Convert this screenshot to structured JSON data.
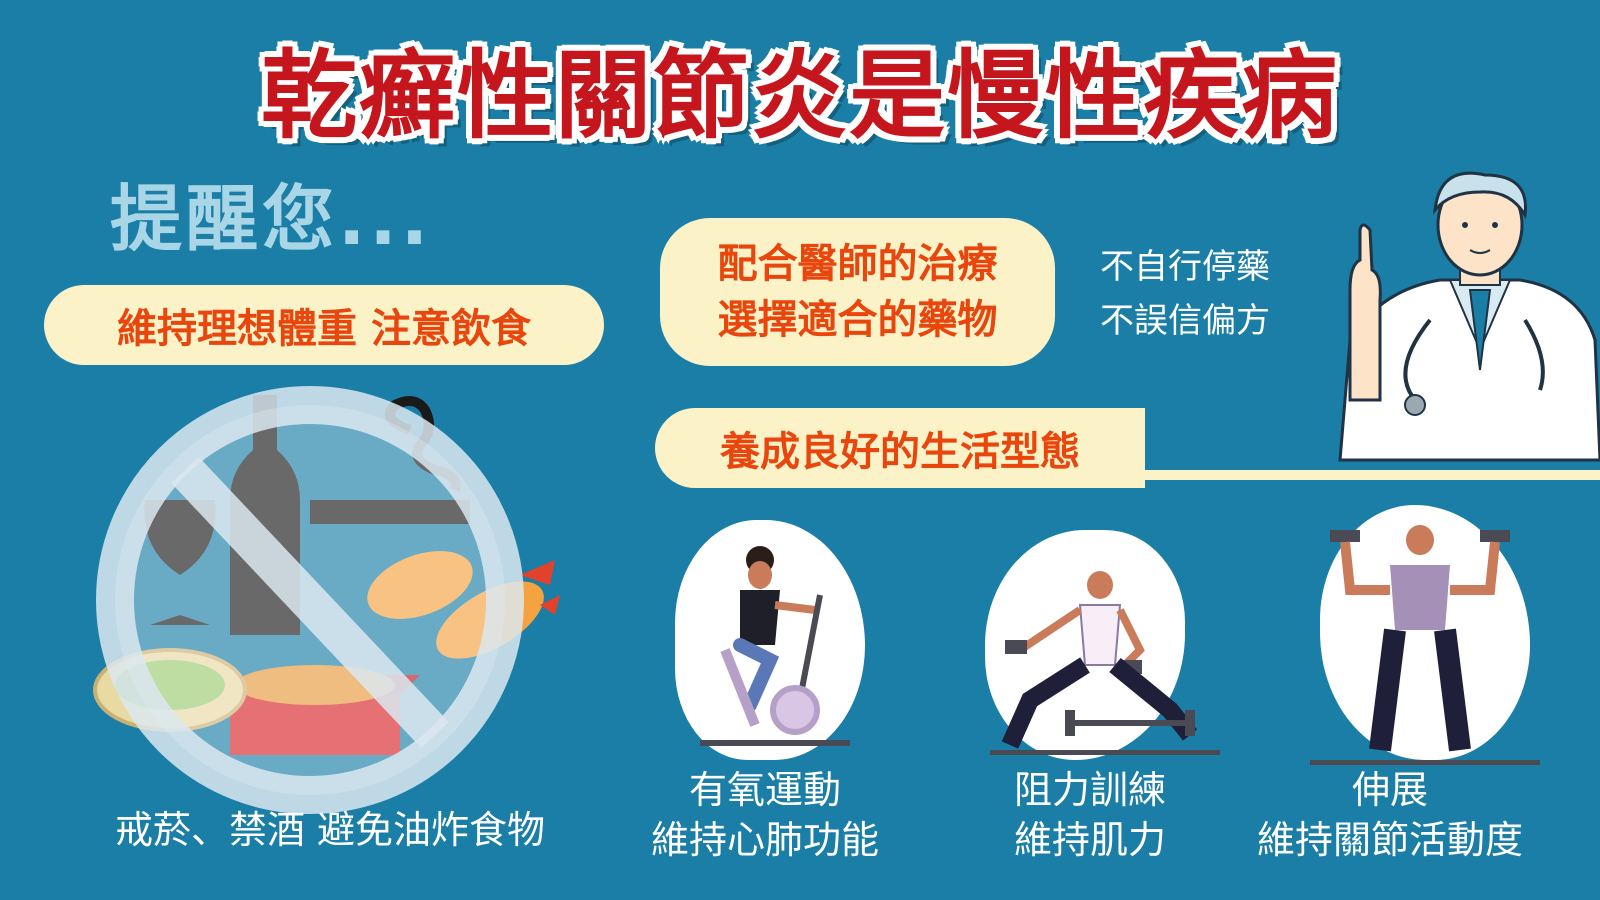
{
  "title": "乾癬性關節炎是慢性疾病",
  "reminder": "提醒您...",
  "tips": {
    "diet": "維持理想體重 注意飲食",
    "treatment_line1": "配合醫師的治療",
    "treatment_line2": "選擇適合的藥物",
    "treatment_note_line1": "不自行停藥",
    "treatment_note_line2": "不誤信偏方",
    "lifestyle": "養成良好的生活型態"
  },
  "avoid_caption": "戒菸、禁酒 避免油炸食物",
  "exercises": [
    {
      "line1": "有氧運動",
      "line2": "維持心肺功能"
    },
    {
      "line1": "阻力訓練",
      "line2": "維持肌力"
    },
    {
      "line1": "伸展",
      "line2": "維持關節活動度"
    }
  ],
  "colors": {
    "background": "#1a7ea6",
    "title_red": "#c4161c",
    "pill_bg": "#fbf2c8",
    "pill_text": "#e8460c",
    "reminder_text": "#a9d6e6"
  },
  "icons": [
    "no-sign-icon",
    "wine-bottle-icon",
    "wine-glass-icon",
    "cigarette-icon",
    "fried-shrimp-icon",
    "fried-chicken-box-icon",
    "doctor-icon",
    "stationary-bike-icon",
    "dumbbell-icon"
  ]
}
